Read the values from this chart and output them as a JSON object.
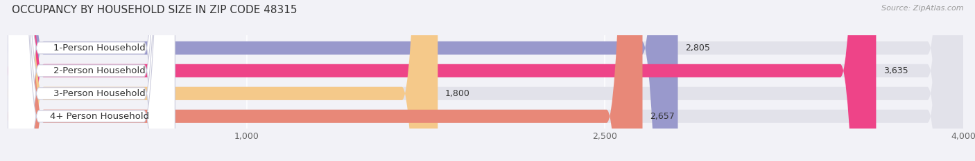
{
  "title": "OCCUPANCY BY HOUSEHOLD SIZE IN ZIP CODE 48315",
  "source": "Source: ZipAtlas.com",
  "categories": [
    "1-Person Household",
    "2-Person Household",
    "3-Person Household",
    "4+ Person Household"
  ],
  "values": [
    2805,
    3635,
    1800,
    2657
  ],
  "bar_colors": [
    "#9999cc",
    "#ee4488",
    "#f5c98a",
    "#e88878"
  ],
  "label_bg_colors": [
    "#aaaadd",
    "#ee4488",
    "#f5c98a",
    "#e88878"
  ],
  "background_color": "#f2f2f7",
  "bar_bg_color": "#e2e2ea",
  "xlim": [
    0,
    4000
  ],
  "xticks": [
    1000,
    2500,
    4000
  ],
  "label_fontsize": 9.5,
  "value_fontsize": 9,
  "title_fontsize": 11
}
